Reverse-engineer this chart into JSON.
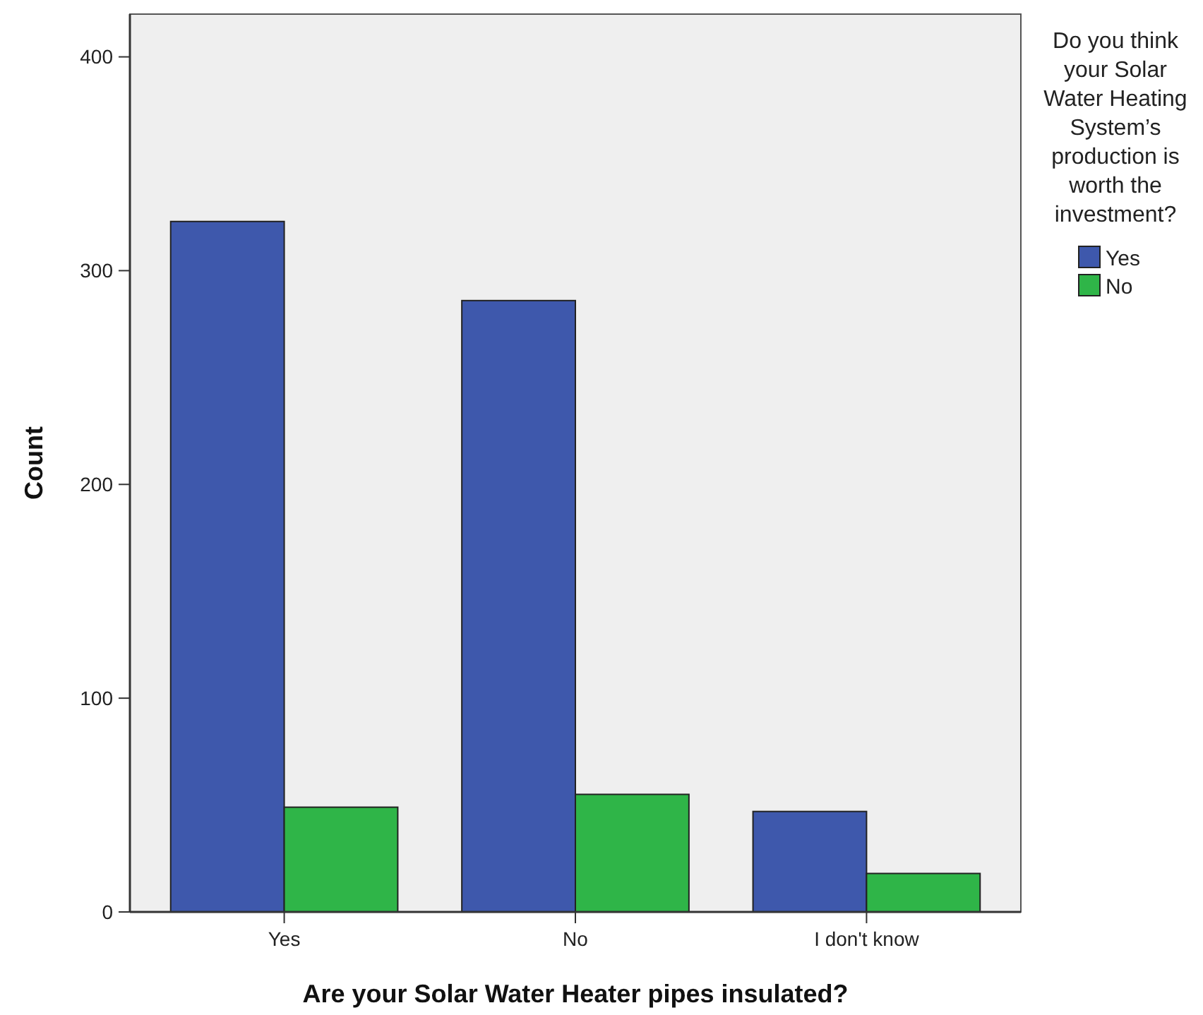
{
  "chart_data": {
    "type": "bar",
    "xlabel": "Are your Solar Water Heater pipes insulated?",
    "ylabel": "Count",
    "legend_title": "Do you think your Solar Water Heating System’s production is worth the investment?",
    "categories": [
      "Yes",
      "No",
      "I don't know"
    ],
    "series": [
      {
        "name": "Yes",
        "color": "#3e58ac",
        "values": [
          323,
          286,
          47
        ]
      },
      {
        "name": "No",
        "color": "#2fb548",
        "values": [
          49,
          55,
          18
        ]
      }
    ],
    "ylim": [
      0,
      420
    ],
    "yticks": [
      0,
      100,
      200,
      300,
      400
    ],
    "grid": false,
    "legend": "right"
  }
}
